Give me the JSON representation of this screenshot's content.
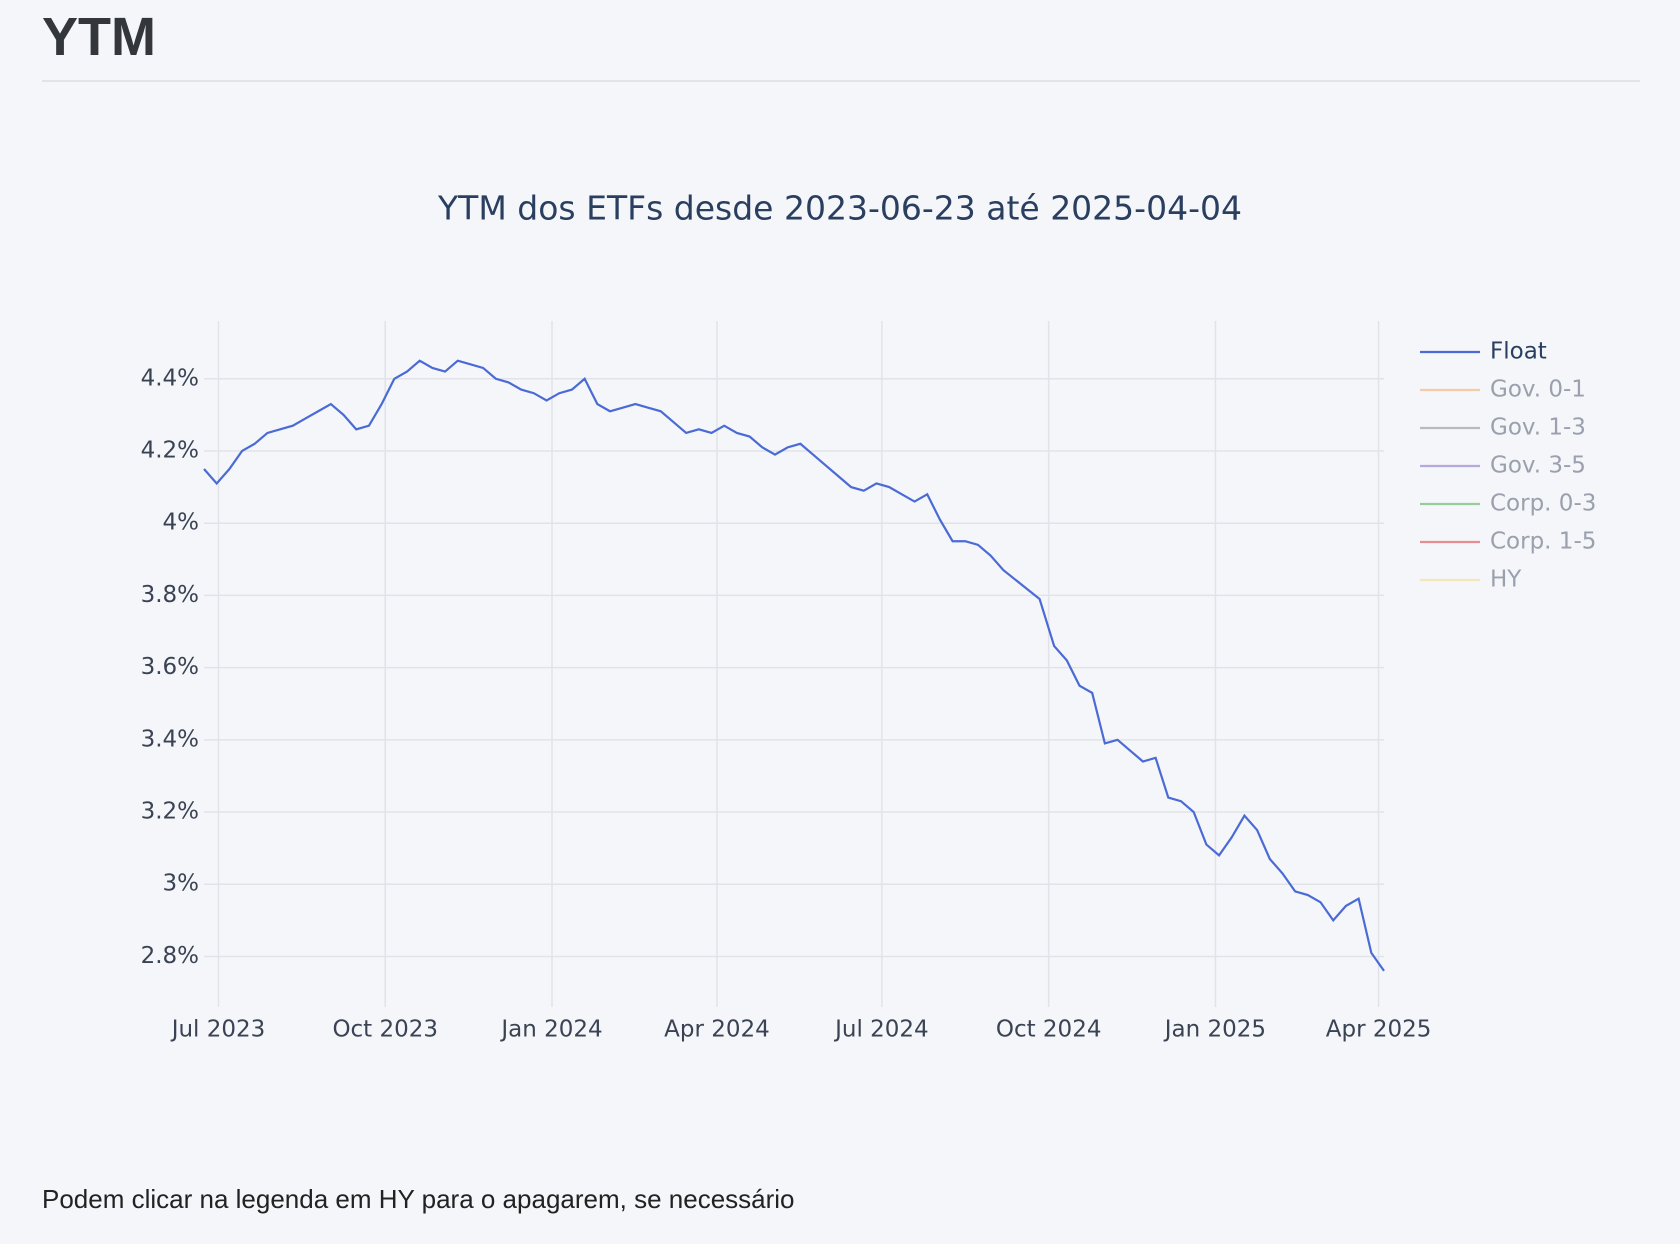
{
  "header": {
    "title": "YTM"
  },
  "chart_data": {
    "type": "line",
    "title": "YTM dos ETFs desde 2023-06-23 até 2025-04-04",
    "x": [
      "2023-06-23",
      "2023-06-30",
      "2023-07-07",
      "2023-07-14",
      "2023-07-21",
      "2023-07-28",
      "2023-08-04",
      "2023-08-11",
      "2023-08-18",
      "2023-08-25",
      "2023-09-01",
      "2023-09-08",
      "2023-09-15",
      "2023-09-22",
      "2023-09-29",
      "2023-10-06",
      "2023-10-13",
      "2023-10-20",
      "2023-10-27",
      "2023-11-03",
      "2023-11-10",
      "2023-11-17",
      "2023-11-24",
      "2023-12-01",
      "2023-12-08",
      "2023-12-15",
      "2023-12-22",
      "2023-12-29",
      "2024-01-05",
      "2024-01-12",
      "2024-01-19",
      "2024-01-26",
      "2024-02-02",
      "2024-02-09",
      "2024-02-16",
      "2024-02-23",
      "2024-03-01",
      "2024-03-08",
      "2024-03-15",
      "2024-03-22",
      "2024-03-29",
      "2024-04-05",
      "2024-04-12",
      "2024-04-19",
      "2024-04-26",
      "2024-05-03",
      "2024-05-10",
      "2024-05-17",
      "2024-05-24",
      "2024-05-31",
      "2024-06-07",
      "2024-06-14",
      "2024-06-21",
      "2024-06-28",
      "2024-07-05",
      "2024-07-12",
      "2024-07-19",
      "2024-07-26",
      "2024-08-02",
      "2024-08-09",
      "2024-08-16",
      "2024-08-23",
      "2024-08-30",
      "2024-09-06",
      "2024-09-26",
      "2024-10-04",
      "2024-10-11",
      "2024-10-18",
      "2024-10-25",
      "2024-11-01",
      "2024-11-08",
      "2024-11-15",
      "2024-11-22",
      "2024-11-29",
      "2024-12-06",
      "2024-12-13",
      "2024-12-20",
      "2024-12-27",
      "2025-01-03",
      "2025-01-10",
      "2025-01-17",
      "2025-01-24",
      "2025-01-31",
      "2025-02-07",
      "2025-02-14",
      "2025-02-21",
      "2025-02-28",
      "2025-03-07",
      "2025-03-14",
      "2025-03-21",
      "2025-03-28",
      "2025-04-04"
    ],
    "series": [
      {
        "name": "Float",
        "color": "#4a6bd6",
        "visible": true,
        "values": [
          4.15,
          4.11,
          4.15,
          4.2,
          4.22,
          4.25,
          4.26,
          4.27,
          4.29,
          4.31,
          4.33,
          4.3,
          4.26,
          4.27,
          4.33,
          4.4,
          4.42,
          4.45,
          4.43,
          4.42,
          4.45,
          4.44,
          4.43,
          4.4,
          4.39,
          4.37,
          4.36,
          4.34,
          4.36,
          4.37,
          4.4,
          4.33,
          4.31,
          4.32,
          4.33,
          4.32,
          4.31,
          4.28,
          4.25,
          4.26,
          4.25,
          4.27,
          4.25,
          4.24,
          4.21,
          4.19,
          4.21,
          4.22,
          4.19,
          4.16,
          4.13,
          4.1,
          4.09,
          4.11,
          4.1,
          4.08,
          4.06,
          4.08,
          4.01,
          3.95,
          3.95,
          3.94,
          3.91,
          3.87,
          3.79,
          3.66,
          3.62,
          3.55,
          3.53,
          3.39,
          3.4,
          3.37,
          3.34,
          3.35,
          3.24,
          3.23,
          3.2,
          3.11,
          3.08,
          3.13,
          3.19,
          3.15,
          3.07,
          3.03,
          2.98,
          2.97,
          2.95,
          2.9,
          2.94,
          2.96,
          2.81,
          2.76
        ]
      },
      {
        "name": "Gov. 0-1",
        "color": "#f5a35c",
        "visible": false
      },
      {
        "name": "Gov. 1-3",
        "color": "#7f7f7f",
        "visible": false
      },
      {
        "name": "Gov. 3-5",
        "color": "#7b5fc7",
        "visible": false
      },
      {
        "name": "Corp. 0-3",
        "color": "#3aa83a",
        "visible": false
      },
      {
        "name": "Corp. 1-5",
        "color": "#d62728",
        "visible": false
      },
      {
        "name": "HY",
        "color": "#f5d77a",
        "visible": false
      }
    ],
    "xlim": [
      "2023-06-23",
      "2025-04-04"
    ],
    "xticks": [
      {
        "value": "2023-07-01",
        "label": "Jul 2023"
      },
      {
        "value": "2023-10-01",
        "label": "Oct 2023"
      },
      {
        "value": "2024-01-01",
        "label": "Jan 2024"
      },
      {
        "value": "2024-04-01",
        "label": "Apr 2024"
      },
      {
        "value": "2024-07-01",
        "label": "Jul 2024"
      },
      {
        "value": "2024-10-01",
        "label": "Oct 2024"
      },
      {
        "value": "2025-01-01",
        "label": "Jan 2025"
      },
      {
        "value": "2025-04-01",
        "label": "Apr 2025"
      }
    ],
    "ylim": [
      2.66,
      4.56
    ],
    "yticks": [
      {
        "value": 2.8,
        "label": "2.8%"
      },
      {
        "value": 3,
        "label": "3%"
      },
      {
        "value": 3.2,
        "label": "3.2%"
      },
      {
        "value": 3.4,
        "label": "3.4%"
      },
      {
        "value": 3.6,
        "label": "3.6%"
      },
      {
        "value": 3.8,
        "label": "3.8%"
      },
      {
        "value": 4,
        "label": "4%"
      },
      {
        "value": 4.2,
        "label": "4.2%"
      },
      {
        "value": 4.4,
        "label": "4.4%"
      }
    ],
    "grid": true,
    "legend": "right"
  },
  "footer": {
    "note": "Podem clicar na legenda em HY para o apagarem, se necessário"
  }
}
